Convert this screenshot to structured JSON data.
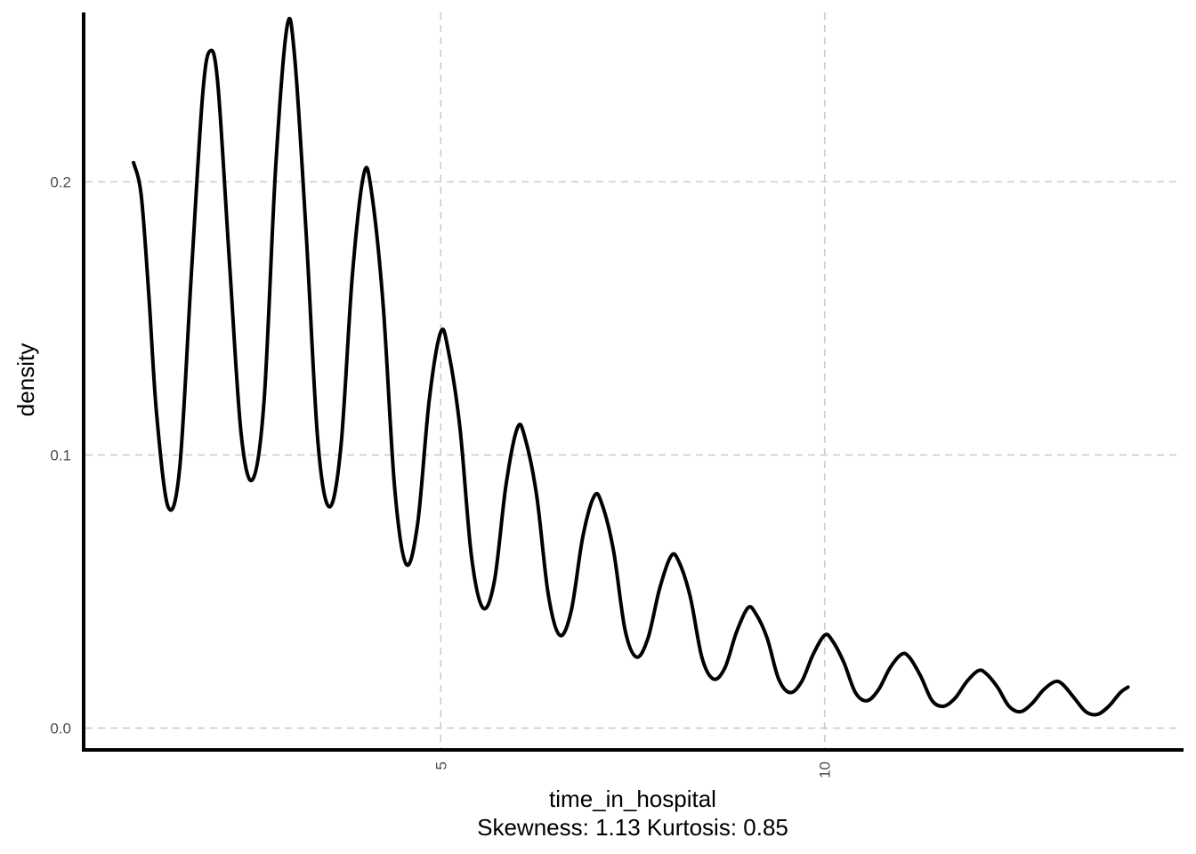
{
  "chart_data": {
    "type": "line",
    "title": "",
    "xlabel": "time_in_hospital",
    "caption": "Skewness: 1.13 Kurtosis: 0.85",
    "ylabel": "density",
    "xlim": [
      0.35,
      14.65
    ],
    "ylim": [
      -0.008,
      0.262
    ],
    "x_ticks": [
      5,
      10
    ],
    "y_ticks": [
      0.0,
      0.1,
      0.2
    ],
    "x_tick_labels": [
      "5",
      "10"
    ],
    "y_tick_labels": [
      "0.0",
      "0.1",
      "0.2"
    ],
    "grid": true,
    "legend": "none",
    "series": [
      {
        "color": "#000000",
        "x": [
          1.0,
          1.1,
          1.2,
          1.3,
          1.45,
          1.6,
          1.75,
          1.9,
          2.0,
          2.1,
          2.25,
          2.4,
          2.55,
          2.7,
          2.85,
          3.0,
          3.1,
          3.25,
          3.4,
          3.55,
          3.7,
          3.85,
          4.0,
          4.1,
          4.25,
          4.4,
          4.55,
          4.7,
          4.85,
          5.0,
          5.1,
          5.25,
          5.4,
          5.55,
          5.7,
          5.85,
          6.0,
          6.1,
          6.25,
          6.4,
          6.55,
          6.7,
          6.85,
          7.0,
          7.1,
          7.25,
          7.4,
          7.55,
          7.7,
          7.85,
          8.0,
          8.1,
          8.25,
          8.4,
          8.55,
          8.7,
          8.85,
          9.0,
          9.1,
          9.25,
          9.4,
          9.55,
          9.7,
          9.85,
          10.0,
          10.1,
          10.25,
          10.4,
          10.55,
          10.7,
          10.85,
          11.0,
          11.1,
          11.25,
          11.4,
          11.55,
          11.7,
          11.85,
          12.0,
          12.1,
          12.25,
          12.4,
          12.55,
          12.7,
          12.85,
          13.0,
          13.1,
          13.25,
          13.4,
          13.55,
          13.7,
          13.85,
          13.95
        ],
        "y": [
          0.207,
          0.195,
          0.158,
          0.115,
          0.081,
          0.095,
          0.165,
          0.232,
          0.248,
          0.235,
          0.17,
          0.108,
          0.091,
          0.12,
          0.205,
          0.257,
          0.245,
          0.18,
          0.105,
          0.081,
          0.103,
          0.166,
          0.203,
          0.196,
          0.155,
          0.088,
          0.06,
          0.075,
          0.12,
          0.145,
          0.138,
          0.11,
          0.063,
          0.044,
          0.054,
          0.089,
          0.11,
          0.106,
          0.085,
          0.049,
          0.034,
          0.043,
          0.07,
          0.085,
          0.082,
          0.065,
          0.036,
          0.026,
          0.033,
          0.051,
          0.063,
          0.061,
          0.048,
          0.026,
          0.018,
          0.022,
          0.035,
          0.044,
          0.042,
          0.033,
          0.018,
          0.013,
          0.017,
          0.027,
          0.034,
          0.032,
          0.024,
          0.013,
          0.01,
          0.014,
          0.022,
          0.027,
          0.026,
          0.019,
          0.01,
          0.008,
          0.011,
          0.017,
          0.021,
          0.02,
          0.015,
          0.008,
          0.006,
          0.009,
          0.014,
          0.017,
          0.016,
          0.011,
          0.006,
          0.005,
          0.008,
          0.013,
          0.015
        ]
      }
    ]
  }
}
